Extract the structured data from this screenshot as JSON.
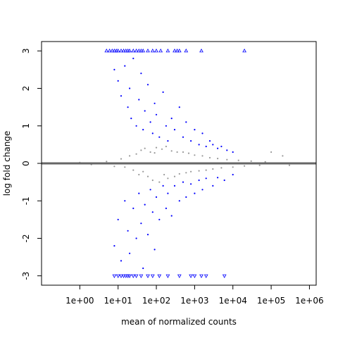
{
  "chart_data": {
    "type": "scatter",
    "title": "",
    "xlabel": "mean of normalized counts",
    "ylabel": "log fold change",
    "x_scale": "log10",
    "xlim": [
      0.1,
      1500000
    ],
    "ylim": [
      -3.25,
      3.25
    ],
    "x_ticks": [
      1,
      10,
      100,
      1000,
      10000,
      100000,
      1000000
    ],
    "x_tick_labels": [
      "1e+00",
      "1e+01",
      "1e+02",
      "1e+03",
      "1e+04",
      "1e+05",
      "1e+06"
    ],
    "y_ticks": [
      -3,
      -2,
      -1,
      0,
      1,
      2,
      3
    ],
    "y_tick_labels": [
      "-3",
      "-2",
      "-1",
      "0",
      "1",
      "2",
      "3"
    ],
    "reference_line": {
      "y": 0,
      "color": "#666666"
    },
    "grid": false,
    "legend": "none",
    "series": [
      {
        "color": "#999999",
        "marker": "point",
        "points": [
          [
            0.5,
            0.0
          ],
          [
            1,
            0.02
          ],
          [
            2,
            -0.03
          ],
          [
            5,
            0.05
          ],
          [
            8,
            -0.08
          ],
          [
            12,
            0.12
          ],
          [
            15,
            -0.1
          ],
          [
            20,
            0.2
          ],
          [
            25,
            -0.18
          ],
          [
            30,
            0.25
          ],
          [
            35,
            -0.3
          ],
          [
            40,
            0.35
          ],
          [
            45,
            -0.22
          ],
          [
            50,
            0.4
          ],
          [
            60,
            -0.35
          ],
          [
            70,
            0.3
          ],
          [
            80,
            -0.45
          ],
          [
            90,
            0.28
          ],
          [
            100,
            0.42
          ],
          [
            120,
            -0.5
          ],
          [
            140,
            0.38
          ],
          [
            160,
            -0.3
          ],
          [
            180,
            0.45
          ],
          [
            200,
            -0.4
          ],
          [
            250,
            0.33
          ],
          [
            300,
            -0.35
          ],
          [
            350,
            0.3
          ],
          [
            400,
            -0.28
          ],
          [
            500,
            0.3
          ],
          [
            600,
            -0.25
          ],
          [
            700,
            0.27
          ],
          [
            800,
            -0.22
          ],
          [
            1000,
            0.22
          ],
          [
            1300,
            -0.2
          ],
          [
            1600,
            0.2
          ],
          [
            2000,
            -0.18
          ],
          [
            2500,
            0.15
          ],
          [
            3000,
            -0.15
          ],
          [
            4000,
            0.13
          ],
          [
            5000,
            -0.12
          ],
          [
            7000,
            0.1
          ],
          [
            10000,
            -0.1
          ],
          [
            14000,
            0.08
          ],
          [
            20000,
            -0.07
          ],
          [
            30000,
            0.06
          ],
          [
            50000,
            -0.05
          ],
          [
            70000,
            0.04
          ],
          [
            100000,
            0.3
          ],
          [
            200000,
            0.2
          ],
          [
            300000,
            -0.05
          ]
        ]
      },
      {
        "color": "#0000ff",
        "marker": "point",
        "points": [
          [
            8,
            2.5
          ],
          [
            10,
            2.2
          ],
          [
            12,
            1.8
          ],
          [
            15,
            2.6
          ],
          [
            18,
            1.5
          ],
          [
            20,
            2.0
          ],
          [
            22,
            1.2
          ],
          [
            25,
            2.8
          ],
          [
            30,
            1.0
          ],
          [
            35,
            1.7
          ],
          [
            40,
            2.4
          ],
          [
            45,
            0.9
          ],
          [
            50,
            1.4
          ],
          [
            60,
            2.1
          ],
          [
            70,
            1.1
          ],
          [
            80,
            0.8
          ],
          [
            90,
            1.6
          ],
          [
            100,
            1.3
          ],
          [
            120,
            0.7
          ],
          [
            150,
            1.9
          ],
          [
            180,
            1.0
          ],
          [
            200,
            0.6
          ],
          [
            250,
            1.2
          ],
          [
            300,
            0.9
          ],
          [
            400,
            1.5
          ],
          [
            500,
            0.7
          ],
          [
            600,
            1.1
          ],
          [
            800,
            0.6
          ],
          [
            1000,
            0.9
          ],
          [
            1300,
            0.5
          ],
          [
            1600,
            0.8
          ],
          [
            2000,
            0.45
          ],
          [
            2500,
            0.6
          ],
          [
            3000,
            0.5
          ],
          [
            4000,
            0.4
          ],
          [
            5000,
            0.45
          ],
          [
            7000,
            0.35
          ],
          [
            10000,
            0.3
          ],
          [
            8,
            -2.2
          ],
          [
            10,
            -1.5
          ],
          [
            12,
            -2.6
          ],
          [
            15,
            -1.0
          ],
          [
            18,
            -1.8
          ],
          [
            20,
            -2.4
          ],
          [
            25,
            -1.2
          ],
          [
            30,
            -2.0
          ],
          [
            35,
            -0.8
          ],
          [
            40,
            -1.6
          ],
          [
            45,
            -2.8
          ],
          [
            50,
            -1.1
          ],
          [
            60,
            -1.9
          ],
          [
            70,
            -0.7
          ],
          [
            80,
            -1.3
          ],
          [
            90,
            -2.3
          ],
          [
            100,
            -0.9
          ],
          [
            120,
            -1.5
          ],
          [
            150,
            -0.6
          ],
          [
            180,
            -1.2
          ],
          [
            200,
            -0.8
          ],
          [
            250,
            -1.4
          ],
          [
            300,
            -0.6
          ],
          [
            400,
            -1.0
          ],
          [
            500,
            -0.5
          ],
          [
            600,
            -0.9
          ],
          [
            800,
            -0.55
          ],
          [
            1000,
            -0.8
          ],
          [
            1300,
            -0.45
          ],
          [
            1600,
            -0.7
          ],
          [
            2000,
            -0.4
          ],
          [
            3000,
            -0.6
          ],
          [
            4000,
            -0.38
          ],
          [
            6000,
            -0.45
          ],
          [
            10000,
            -0.3
          ]
        ]
      },
      {
        "color": "#0000ff",
        "marker": "open-triangle-up",
        "clipped_at": 3,
        "x": [
          5,
          6,
          7,
          8,
          9,
          10,
          12,
          14,
          16,
          18,
          20,
          25,
          30,
          35,
          40,
          45,
          60,
          80,
          100,
          130,
          200,
          300,
          350,
          400,
          600,
          1500,
          20000
        ]
      },
      {
        "color": "#0000ff",
        "marker": "open-triangle-down",
        "clipped_at": -3,
        "x": [
          8,
          10,
          12,
          14,
          16,
          18,
          20,
          25,
          30,
          40,
          60,
          80,
          120,
          200,
          400,
          800,
          1000,
          1500,
          2000,
          6000
        ]
      }
    ]
  }
}
